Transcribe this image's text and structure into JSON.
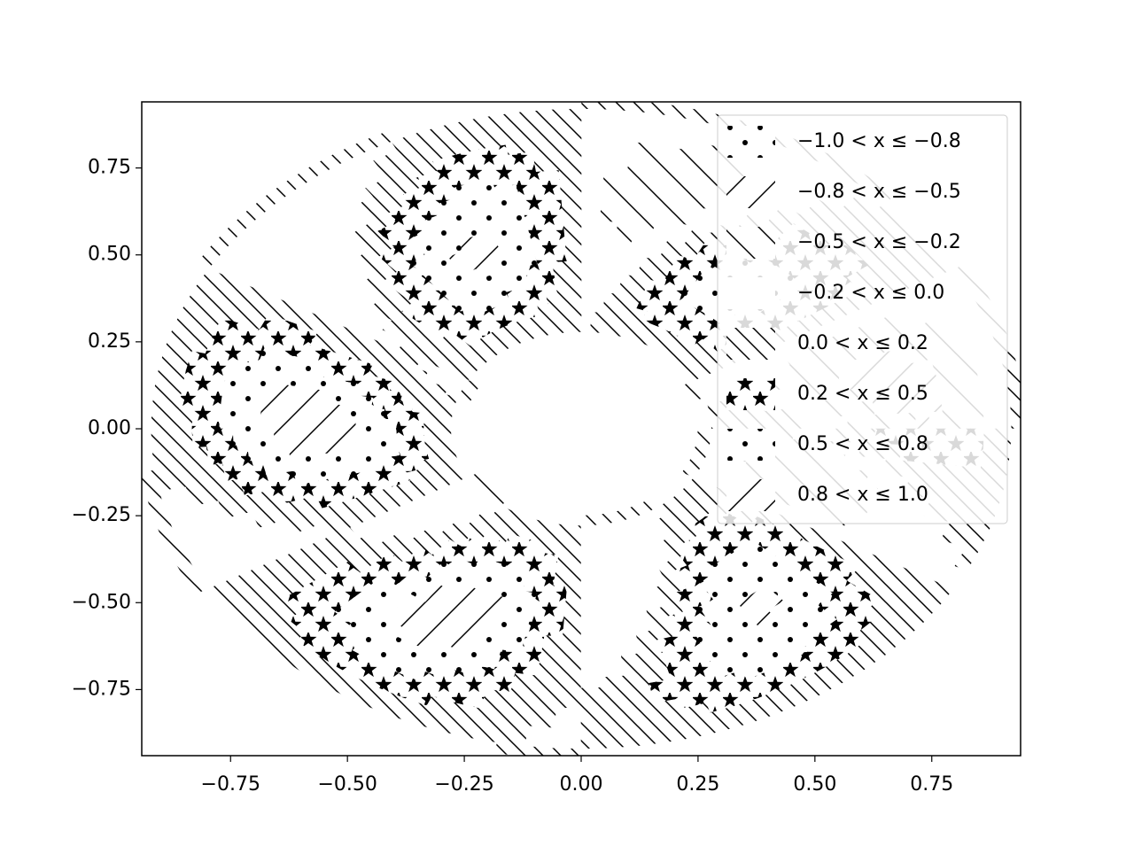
{
  "chart_data": {
    "type": "hatched-contour",
    "levels": [
      -1.0,
      -0.8,
      -0.5,
      -0.2,
      0.0,
      0.2,
      0.5,
      0.8,
      1.0
    ],
    "series": [
      {
        "name": "−1.0 < x ≤ −0.8",
        "hatch": "."
      },
      {
        "name": "−0.8 < x ≤ −0.5",
        "hatch": "/"
      },
      {
        "name": "−0.5 < x ≤ −0.2",
        "hatch": "\\"
      },
      {
        "name": "−0.2 < x ≤ 0.0",
        "hatch": null
      },
      {
        "name": "0.0 < x ≤ 0.2",
        "hatch": "\\\\"
      },
      {
        "name": "0.2 < x ≤ 0.5",
        "hatch": "*"
      },
      {
        "name": "0.5 < x ≤ 0.8",
        "hatch": "."
      },
      {
        "name": "0.8 < x ≤ 1.0",
        "hatch": "/"
      }
    ],
    "xlim": [
      -0.94,
      0.94
    ],
    "ylim": [
      -0.94,
      0.94
    ],
    "xticks": [
      {
        "value": -0.75,
        "label": "−0.75"
      },
      {
        "value": -0.5,
        "label": "−0.50"
      },
      {
        "value": -0.25,
        "label": "−0.25"
      },
      {
        "value": 0,
        "label": "0.00"
      },
      {
        "value": 0.25,
        "label": "0.25"
      },
      {
        "value": 0.5,
        "label": "0.50"
      },
      {
        "value": 0.75,
        "label": "0.75"
      }
    ],
    "yticks": [
      {
        "value": -0.75,
        "label": "−0.75"
      },
      {
        "value": -0.5,
        "label": "−0.50"
      },
      {
        "value": -0.25,
        "label": "−0.25"
      },
      {
        "value": 0,
        "label": "0.00"
      },
      {
        "value": 0.25,
        "label": "0.25"
      },
      {
        "value": 0.5,
        "label": "0.50"
      },
      {
        "value": 0.75,
        "label": "0.75"
      }
    ],
    "legend": "upper right"
  }
}
